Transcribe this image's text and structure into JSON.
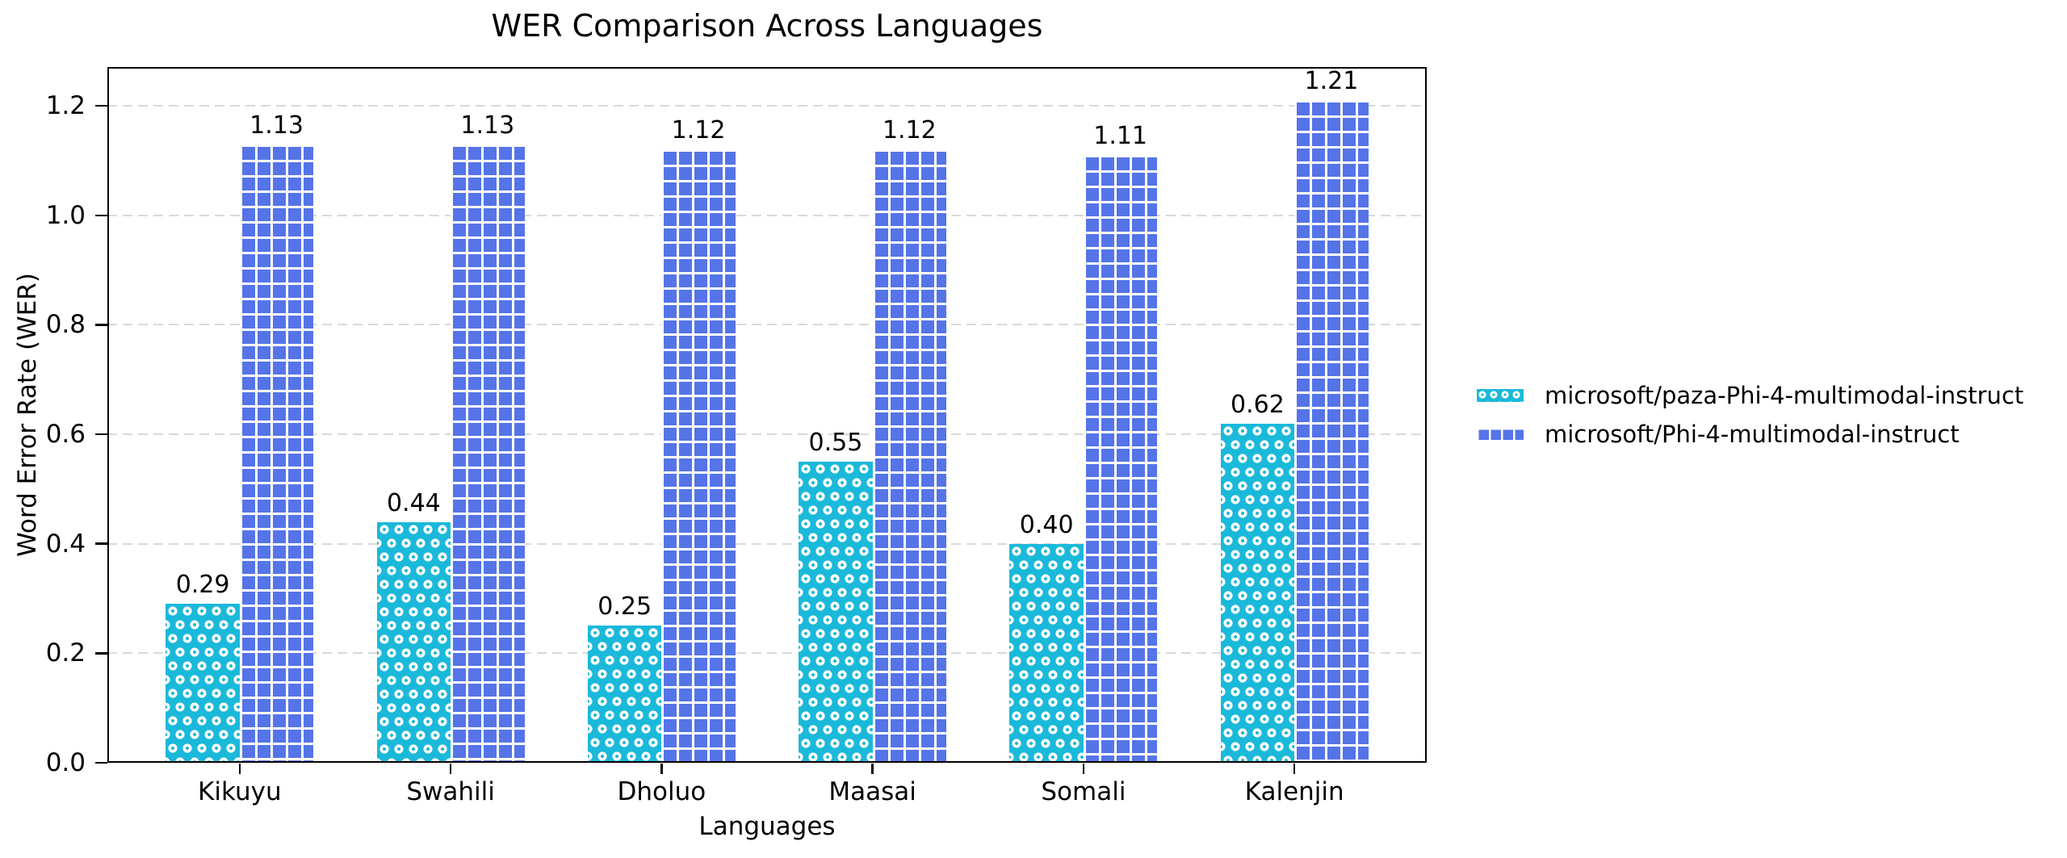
{
  "chart_data": {
    "type": "bar",
    "title": "WER Comparison Across Languages",
    "xlabel": "Languages",
    "ylabel": "Word Error Rate (WER)",
    "categories": [
      "Kikuyu",
      "Swahili",
      "Dholuo",
      "Maasai",
      "Somali",
      "Kalenjin"
    ],
    "series": [
      {
        "name": "microsoft/paza-Phi-4-multimodal-instruct",
        "color": "#1ab9da",
        "hatch": "white-dots",
        "values": [
          0.29,
          0.44,
          0.25,
          0.55,
          0.4,
          0.62
        ],
        "labels": [
          "0.29",
          "0.44",
          "0.25",
          "0.55",
          "0.40",
          "0.62"
        ]
      },
      {
        "name": "microsoft/Phi-4-multimodal-instruct",
        "color": "#5574e8",
        "hatch": "white-grid",
        "values": [
          1.13,
          1.13,
          1.12,
          1.12,
          1.11,
          1.21
        ],
        "labels": [
          "1.13",
          "1.13",
          "1.12",
          "1.12",
          "1.11",
          "1.21"
        ]
      }
    ],
    "yticks": [
      "0.0",
      "0.2",
      "0.4",
      "0.6",
      "0.8",
      "1.0",
      "1.2"
    ],
    "ytick_values": [
      0,
      0.2,
      0.4,
      0.6,
      0.8,
      1.0,
      1.2
    ],
    "ylim": [
      0,
      1.271
    ],
    "bar_width_units": 0.35,
    "x_edge_margin_units": 0.627,
    "grid": {
      "axis": "y",
      "style": "dashed",
      "color": "#d9d9d9"
    },
    "legend_position": "outside-right-center",
    "legend_frame": false
  }
}
